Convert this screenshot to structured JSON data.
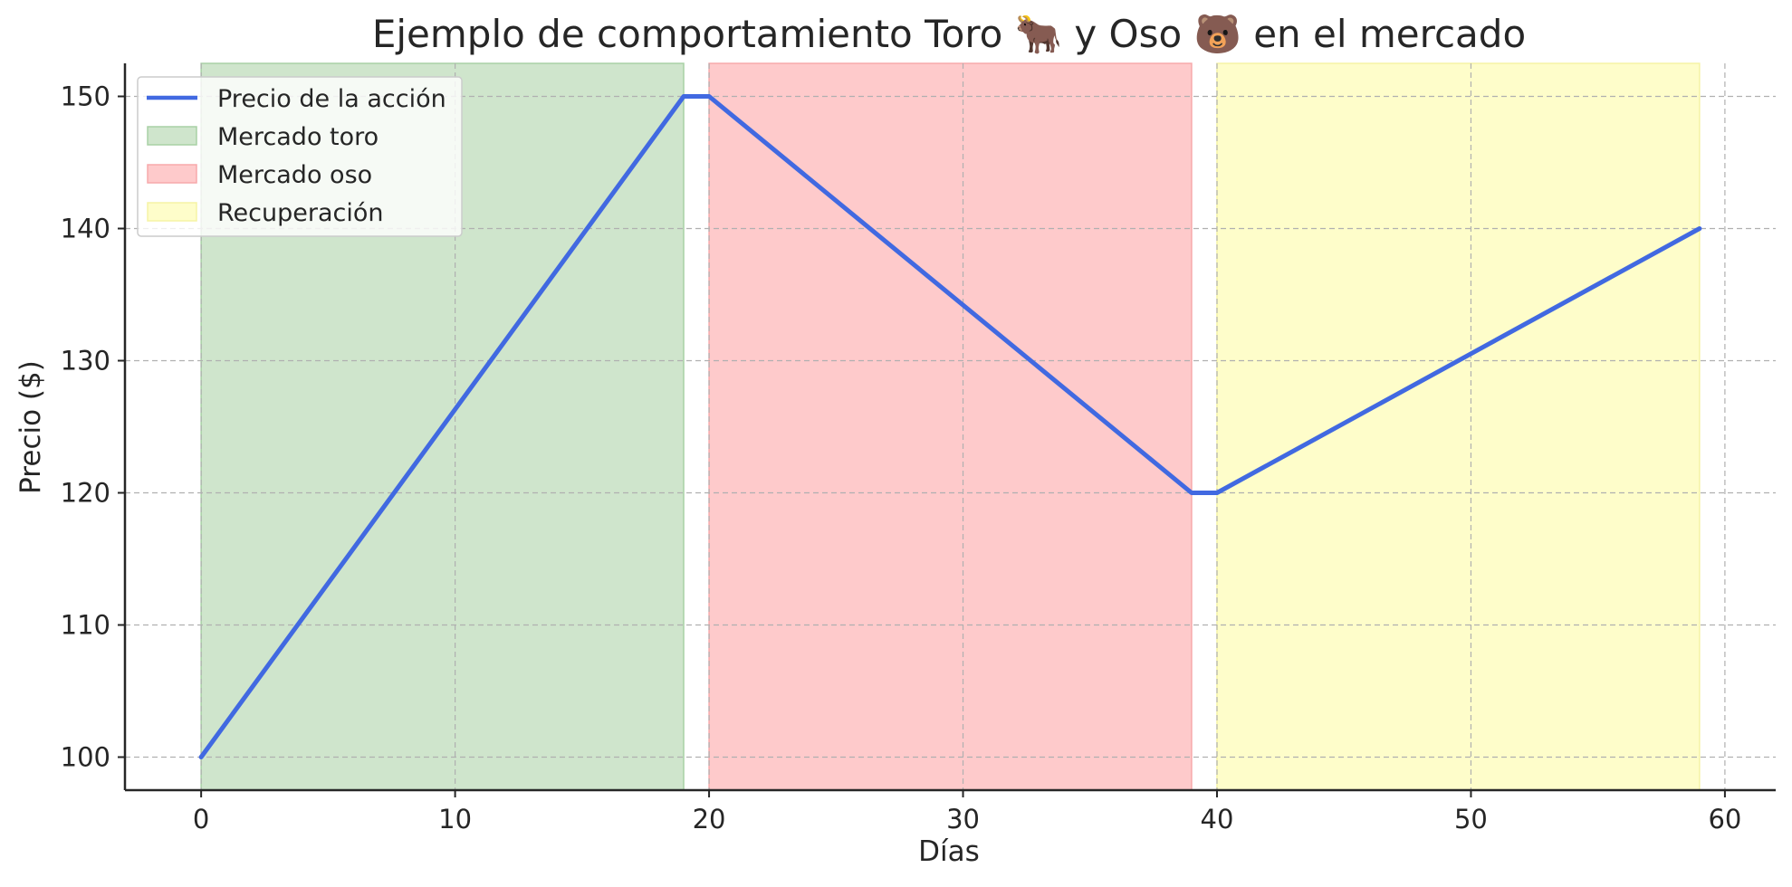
{
  "chart_data": {
    "type": "line",
    "title": "Ejemplo de comportamiento Toro 🐂 y Oso 🐻 en el mercado",
    "xlabel": "Días",
    "ylabel": "Precio ($)",
    "xlim": [
      -3,
      62
    ],
    "ylim": [
      97.5,
      152.5
    ],
    "xticks": [
      0,
      10,
      20,
      30,
      40,
      50,
      60
    ],
    "yticks": [
      100,
      110,
      120,
      130,
      140,
      150
    ],
    "xtick_labels": [
      "0",
      "10",
      "20",
      "30",
      "40",
      "50",
      "60"
    ],
    "ytick_labels": [
      "100",
      "110",
      "120",
      "130",
      "140",
      "150"
    ],
    "grid": true,
    "legend_position": "top-left",
    "series": [
      {
        "name": "Precio de la acción",
        "color": "#4169e1",
        "x": [
          0,
          19,
          20,
          39,
          40,
          59
        ],
        "y": [
          100,
          150,
          150,
          120,
          120,
          140
        ]
      }
    ],
    "regions": [
      {
        "name": "Mercado toro",
        "x_start": 0,
        "x_end": 19,
        "color": "#cfe5cc",
        "edge": "#a9d1a5"
      },
      {
        "name": "Mercado oso",
        "x_start": 20,
        "x_end": 39,
        "color": "#fecacb",
        "edge": "#f7a9ab"
      },
      {
        "name": "Recuperación",
        "x_start": 40,
        "x_end": 59,
        "color": "#fefdca",
        "edge": "#f5f3a5"
      }
    ]
  }
}
